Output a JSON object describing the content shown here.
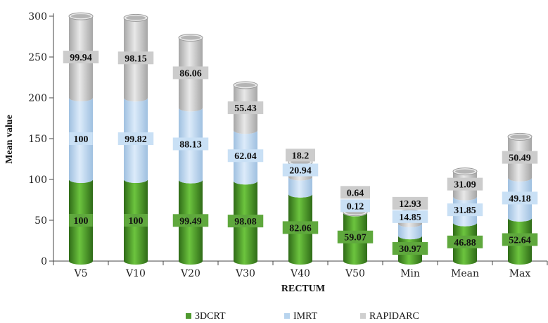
{
  "chart_data": {
    "type": "bar",
    "stacked": true,
    "categories": [
      "V5",
      "V10",
      "V20",
      "V30",
      "V40",
      "V50",
      "Min",
      "Mean",
      "Max"
    ],
    "series": [
      {
        "name": "3DCRT",
        "color": "#4f9a2f",
        "values": [
          100,
          100,
          99.49,
          98.08,
          82.06,
          59.07,
          30.97,
          46.88,
          52.64
        ]
      },
      {
        "name": "IMRT",
        "color": "#b8d4ee",
        "values": [
          100,
          99.82,
          88.13,
          62.04,
          20.94,
          0.12,
          14.85,
          31.85,
          49.18
        ]
      },
      {
        "name": "RAPIDARC",
        "color": "#cfcfcf",
        "values": [
          99.94,
          98.15,
          86.06,
          55.43,
          18.2,
          0.64,
          12.93,
          31.09,
          50.49
        ]
      }
    ],
    "labels": [
      [
        "100",
        "100",
        "99.49",
        "98.08",
        "82.06",
        "59.07",
        "30.97",
        "46.88",
        "52.64"
      ],
      [
        "100",
        "99.82",
        "88.13",
        "62.04",
        "20.94",
        "0.12",
        "14.85",
        "31.85",
        "49.18"
      ],
      [
        "99.94",
        "98.15",
        "86.06",
        "55.43",
        "18.2",
        "0.64",
        "12.93",
        "31.09",
        "50.49"
      ]
    ],
    "yticks": [
      "0",
      "50",
      "100",
      "150",
      "200",
      "250",
      "300"
    ],
    "ylim": [
      0,
      300
    ],
    "xlabel": "RECTUM",
    "ylabel": "Mean value",
    "legend_position": "bottom"
  }
}
